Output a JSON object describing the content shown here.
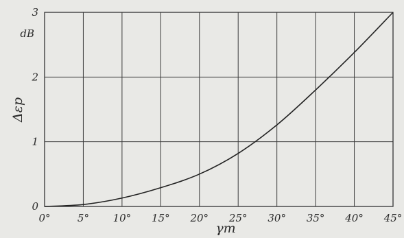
{
  "chart_data": {
    "type": "line",
    "title": "",
    "xlabel": "γm",
    "ylabel": "Δεp",
    "y_unit": "dB",
    "xlim": [
      0,
      45
    ],
    "ylim": [
      0,
      3
    ],
    "grid": true,
    "x_ticks": [
      0,
      5,
      10,
      15,
      20,
      25,
      30,
      35,
      40,
      45
    ],
    "x_tick_labels": [
      "0°",
      "5°",
      "10°",
      "15°",
      "20°",
      "25°",
      "30°",
      "35°",
      "40°",
      "45°"
    ],
    "y_ticks": [
      0,
      1,
      2,
      3
    ],
    "y_tick_labels": [
      "0",
      "1",
      "2",
      "3"
    ],
    "series": [
      {
        "x": [
          0,
          5,
          10,
          15,
          20,
          25,
          30,
          35,
          40,
          45
        ],
        "values": [
          0,
          0.03,
          0.13,
          0.29,
          0.5,
          0.82,
          1.26,
          1.8,
          2.38,
          3.0
        ]
      }
    ]
  }
}
